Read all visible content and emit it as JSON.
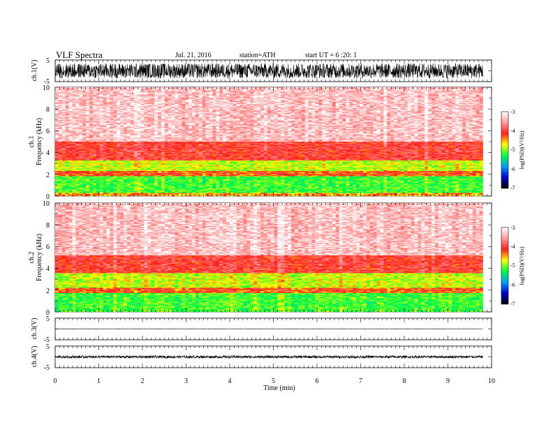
{
  "header": {
    "title": "VLF Spectra",
    "date": "Jul. 21, 2016",
    "station": "station=ATH",
    "start": "start UT =  6 :20: 1"
  },
  "colorbar": {
    "label": "log(PSD)(V²/Hz)",
    "ticks": [
      "-3",
      "-4",
      "-5",
      "-6",
      "-7"
    ],
    "stops": [
      "#ffffff",
      "#ff9a9a",
      "#ff2020",
      "#ffff00",
      "#00ff40",
      "#00a0ff",
      "#0000d0",
      "#000000"
    ]
  },
  "panels": {
    "ch1": {
      "label": "ch.1(V)",
      "ticks": [
        "5",
        "-5"
      ]
    },
    "spec1": {
      "label_ch": "ch.1",
      "label_freq": "Frequency  (kHz)",
      "ticks": [
        "10",
        "8",
        "6",
        "4",
        "2",
        "0"
      ]
    },
    "spec2": {
      "label_ch": "ch.2",
      "label_freq": "Frequency  (kHz)",
      "ticks": [
        "10",
        "8",
        "6",
        "4",
        "2",
        "0"
      ]
    },
    "ch3": {
      "label": "ch.3(V)",
      "ticks": [
        "5",
        "-5"
      ]
    },
    "ch4": {
      "label": "ch.4(V)",
      "ticks": [
        "5",
        "-5"
      ]
    }
  },
  "xaxis": {
    "label": "Time  (min)",
    "ticks": [
      "0",
      "1",
      "2",
      "3",
      "4",
      "5",
      "6",
      "7",
      "8",
      "9",
      "10"
    ]
  },
  "chart_data": {
    "type": "heatmap",
    "title": "VLF Spectra",
    "xlabel": "Time  (min)",
    "ylabel": "Frequency  (kHz)",
    "xlim": [
      0,
      10
    ],
    "ylim": [
      0,
      10
    ],
    "data_end_min": 9.8,
    "colorbar_range": [
      -7,
      -3
    ],
    "spectrograms": [
      {
        "channel": "ch.1",
        "bands": [
          {
            "freq_khz": [
              0,
              0.3
            ],
            "log_psd": -4.3
          },
          {
            "freq_khz": [
              0.3,
              1.8
            ],
            "log_psd": -4.9
          },
          {
            "freq_khz": [
              1.8,
              2.3
            ],
            "log_psd": -4.1
          },
          {
            "freq_khz": [
              2.3,
              3.3
            ],
            "log_psd": -4.6
          },
          {
            "freq_khz": [
              3.3,
              5.0
            ],
            "log_psd": -3.9
          },
          {
            "freq_khz": [
              5.0,
              10.0
            ],
            "log_psd": -3.3
          }
        ]
      },
      {
        "channel": "ch.2",
        "bands": [
          {
            "freq_khz": [
              0,
              1.7
            ],
            "log_psd": -4.9
          },
          {
            "freq_khz": [
              1.7,
              2.2
            ],
            "log_psd": -4.1
          },
          {
            "freq_khz": [
              2.2,
              3.6
            ],
            "log_psd": -4.6
          },
          {
            "freq_khz": [
              3.6,
              5.2
            ],
            "log_psd": -3.9
          },
          {
            "freq_khz": [
              5.2,
              10.0
            ],
            "log_psd": -3.3
          }
        ]
      }
    ],
    "waveforms": [
      {
        "channel": "ch.1(V)",
        "ylim": [
          -5,
          5
        ],
        "amplitude": 3.5
      },
      {
        "channel": "ch.3(V)",
        "ylim": [
          -5,
          5
        ],
        "level": 0.0,
        "amplitude": 0.1
      },
      {
        "channel": "ch.4(V)",
        "ylim": [
          -5,
          5
        ],
        "level": 0.0,
        "amplitude": 0.6
      }
    ]
  }
}
